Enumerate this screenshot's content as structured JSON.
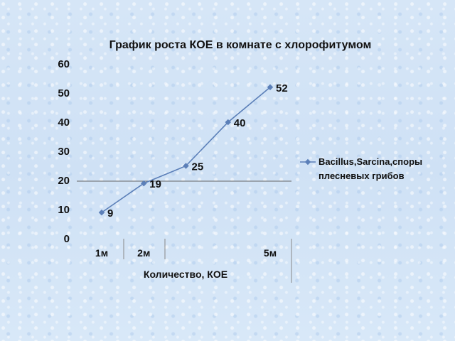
{
  "chart_data": {
    "type": "line",
    "title": "График роста КОЕ в комнате с хлорофитумом",
    "xlabel": "Количество, КОЕ",
    "ylabel": "",
    "ylim": [
      0,
      60
    ],
    "yticks": [
      0,
      10,
      20,
      30,
      40,
      50,
      60
    ],
    "x_index": [
      1,
      2,
      3,
      4,
      5
    ],
    "x_tick_labels": [
      "1м",
      "2м",
      "",
      "",
      "5м"
    ],
    "series": [
      {
        "name": "Bacillus,Sarcina,споры плесневых грибов",
        "legend_lines": [
          "Bacillus,Sarcina,споры",
          "плесневых грибов"
        ],
        "values": [
          9,
          19,
          25,
          40,
          52
        ],
        "data_labels": [
          "9",
          "19",
          "25",
          "40",
          "52"
        ],
        "color": "#5b7fb8"
      }
    ],
    "grid": false,
    "legend_position": "right",
    "colors": {
      "series": "#5b7fb8",
      "axis_line": "#666666"
    }
  }
}
